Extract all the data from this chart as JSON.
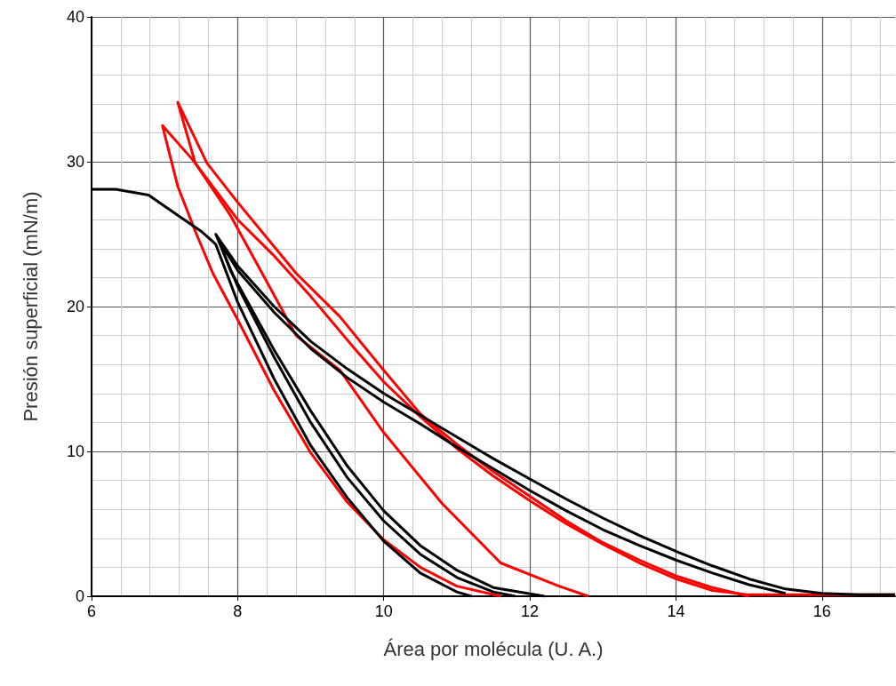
{
  "chart_data": {
    "type": "line",
    "xlabel": "Área por molécula (U. A.)",
    "ylabel": "Presión superficial (mN/m)",
    "xlim": [
      6,
      17
    ],
    "xticks": [
      6,
      8,
      10,
      12,
      14,
      16
    ],
    "ylim": [
      0,
      40
    ],
    "yticks": [
      0,
      10,
      20,
      30,
      40
    ],
    "grid": true,
    "marker": "none",
    "series": [
      {
        "color": "#000000",
        "x": [
          6,
          6.33,
          6.78,
          7.18,
          7.5,
          7.7,
          8,
          8.5,
          9,
          9.5,
          10,
          10.5,
          11,
          11.2
        ],
        "values": [
          28.1,
          28.1,
          27.7,
          26.3,
          25.2,
          24.3,
          20.3,
          15,
          10.4,
          6.8,
          3.8,
          1.6,
          0.3,
          0
        ]
      },
      {
        "color": "#000000",
        "x": [
          17,
          16.5,
          16,
          15.5,
          15,
          14.5,
          14,
          13.5,
          13,
          12.5,
          12,
          11.5,
          11,
          10.5,
          10,
          9.5,
          9,
          8.5,
          8,
          7.7,
          7.8,
          8,
          8.5,
          9,
          9.5,
          10,
          10.5,
          11,
          11.5,
          11.8
        ],
        "values": [
          0.1,
          0.1,
          0.2,
          0.5,
          1.2,
          2.1,
          3.1,
          4.2,
          5.4,
          6.7,
          8.1,
          9.5,
          11,
          12.5,
          14,
          15.7,
          17.6,
          20,
          22.8,
          25,
          23.8,
          21.4,
          16.5,
          12,
          8.2,
          5.2,
          2.9,
          1.3,
          0.3,
          0
        ]
      },
      {
        "color": "#000000",
        "x": [
          15.5,
          15,
          14.5,
          14,
          13.5,
          13,
          12.5,
          12,
          11.5,
          11,
          10.5,
          10,
          9.5,
          9,
          8.5,
          8,
          7.75,
          7.9,
          8.5,
          9,
          9.5,
          10,
          10.5,
          11,
          11.5,
          12.2
        ],
        "values": [
          0.2,
          0.8,
          1.6,
          2.5,
          3.5,
          4.6,
          5.9,
          7.3,
          8.8,
          10.3,
          11.9,
          13.4,
          15.1,
          17.1,
          19.6,
          22.5,
          24.5,
          22.5,
          17,
          12.8,
          9,
          5.9,
          3.5,
          1.8,
          0.6,
          0
        ]
      },
      {
        "color": "#ff0000",
        "x": [
          17,
          15,
          14.5,
          14,
          13.5,
          13,
          12.5,
          12,
          11.5,
          11,
          10.5,
          10,
          9.6,
          9,
          8.48,
          8,
          7.39,
          6.97,
          7.02,
          7.18,
          7.42,
          7.66,
          8,
          8.5,
          9,
          9.5,
          10,
          10.5,
          11,
          11.6
        ],
        "values": [
          0.1,
          0.1,
          0.4,
          1.2,
          2.3,
          3.6,
          5,
          6.6,
          8.3,
          10.2,
          12.4,
          14.8,
          17.1,
          20.7,
          23.6,
          26,
          30.1,
          32.5,
          31.5,
          28.3,
          25.2,
          22.3,
          19.1,
          14.2,
          9.9,
          6.5,
          3.9,
          2,
          0.7,
          0
        ]
      },
      {
        "color": "#ff0000",
        "x": [
          15,
          14.5,
          14,
          13.5,
          13,
          12.5,
          12,
          11.5,
          11,
          10.5,
          10,
          9.4,
          8.8,
          8,
          7.58,
          7.18,
          7.42,
          7.9,
          8.4,
          8.8,
          9.4,
          10,
          10.8,
          11.6,
          12.4,
          12.8
        ],
        "values": [
          0,
          0.6,
          1.4,
          2.5,
          3.7,
          5.2,
          6.9,
          8.6,
          10.5,
          12.6,
          15.6,
          19.3,
          22.3,
          27.2,
          29.9,
          34.1,
          29.9,
          26.3,
          21.7,
          18,
          15.6,
          11.3,
          6.4,
          2.3,
          0.7,
          0
        ]
      }
    ]
  }
}
